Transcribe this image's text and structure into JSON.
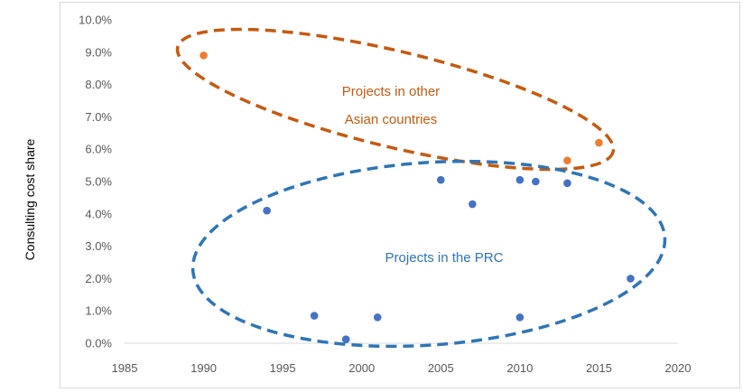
{
  "chart_data": {
    "type": "scatter",
    "xlabel": "",
    "ylabel": "Consulting cost share",
    "xlim": [
      1985,
      2020
    ],
    "ylim": [
      0,
      10
    ],
    "x_ticks": [
      "1985",
      "1990",
      "1995",
      "2000",
      "2005",
      "2010",
      "2015",
      "2020"
    ],
    "y_ticks": [
      "0.0%",
      "1.0%",
      "2.0%",
      "3.0%",
      "4.0%",
      "5.0%",
      "6.0%",
      "7.0%",
      "8.0%",
      "9.0%",
      "10.0%"
    ],
    "grid": false,
    "series": [
      {
        "name": "Projects in other Asian countries",
        "color": "#ED7D31",
        "points": [
          {
            "x": 1990,
            "y": 8.9
          },
          {
            "x": 2013,
            "y": 5.65
          },
          {
            "x": 2015,
            "y": 6.2
          }
        ]
      },
      {
        "name": "Projects in the PRC",
        "color": "#4472C4",
        "points": [
          {
            "x": 1994,
            "y": 4.1
          },
          {
            "x": 1997,
            "y": 0.85
          },
          {
            "x": 1999,
            "y": 0.12
          },
          {
            "x": 2001,
            "y": 0.8
          },
          {
            "x": 2005,
            "y": 5.05
          },
          {
            "x": 2007,
            "y": 4.3
          },
          {
            "x": 2010,
            "y": 5.05
          },
          {
            "x": 2010,
            "y": 0.8
          },
          {
            "x": 2011,
            "y": 5.0
          },
          {
            "x": 2013,
            "y": 4.95
          },
          {
            "x": 2017,
            "y": 2.0
          }
        ]
      }
    ],
    "annotations": [
      {
        "lines": [
          "Projects in other",
          "Asian countries"
        ],
        "color": "#C55A11"
      },
      {
        "lines": [
          "Projects in the PRC"
        ],
        "color": "#2E75B6"
      }
    ],
    "ellipse_colors": [
      "#C55A11",
      "#2E75B6"
    ]
  }
}
